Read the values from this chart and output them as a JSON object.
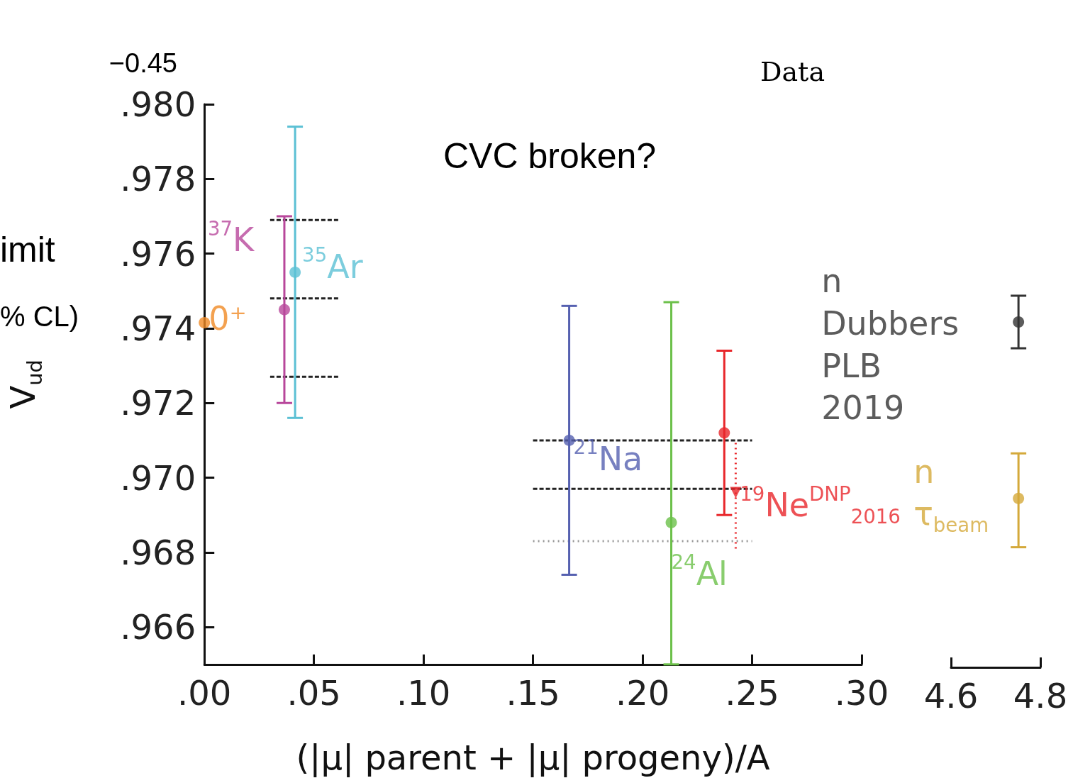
{
  "chart_data": [
    {
      "type": "scatter",
      "xlabel": "(|μ| parent + |μ| progeny)/A",
      "ylabel": "V$_{ud}$",
      "marker": "circle",
      "annotations": [
        "CVC broken?",
        "imit",
        "% CL)",
        "−0.45",
        "Data"
      ],
      "xlim": [
        0,
        0.3
      ],
      "xticks": [
        {
          "value": 0,
          "label": ".00"
        },
        {
          "value": 0.05,
          "label": ".05"
        },
        {
          "value": 0.1,
          "label": ".10"
        },
        {
          "value": 0.15,
          "label": ".15"
        },
        {
          "value": 0.2,
          "label": ".20"
        },
        {
          "value": 0.25,
          "label": ".25"
        },
        {
          "value": 0.3,
          "label": ".30"
        }
      ],
      "ylim": [
        0.965,
        0.98
      ],
      "yticks": [
        {
          "value": 0.966,
          "label": ".966"
        },
        {
          "value": 0.968,
          "label": ".968"
        },
        {
          "value": 0.97,
          "label": ".970"
        },
        {
          "value": 0.972,
          "label": ".972"
        },
        {
          "value": 0.974,
          "label": ".974"
        },
        {
          "value": 0.976,
          "label": ".976"
        },
        {
          "value": 0.978,
          "label": ".978"
        },
        {
          "value": 0.98,
          "label": ".980"
        }
      ],
      "series": [
        {
          "name": "0⁺",
          "color": "#f08a24",
          "x": [
            0
          ],
          "values": [
            0.97415
          ]
        },
        {
          "name": "$^{37}$K",
          "color": "#b8479b",
          "x": [
            0.0365
          ],
          "values": [
            0.9745
          ],
          "errors": [
            [
              0.972,
              0.977
            ]
          ]
        },
        {
          "name": "$^{35}$Ar",
          "color": "#5bc0d4",
          "x": [
            0.0414
          ],
          "values": [
            0.9755
          ],
          "errors": [
            [
              0.9716,
              0.9794
            ]
          ]
        },
        {
          "name": "$^{21}$Na",
          "color": "#5560b0",
          "x": [
            0.1665
          ],
          "values": [
            0.971
          ],
          "errors": [
            [
              0.9674,
              0.9746
            ]
          ]
        },
        {
          "name": "$^{24}$Al",
          "color": "#6cc04a",
          "x": [
            0.2131
          ],
          "values": [
            0.9688
          ],
          "errors": [
            [
              0.965,
              0.9747
            ]
          ]
        },
        {
          "name": "$^{19}$Ne$^{DNP}$$_{2016}$",
          "color": "#e8262a",
          "x": [
            0.2373
          ],
          "values": [
            0.9712
          ],
          "errors": [
            [
              0.969,
              0.9734
            ]
          ]
        },
        {
          "color": "#e8262a",
          "x": [
            0.2425
          ],
          "values": [
            0.9696
          ],
          "errors": [
            [
              0.9681,
              0.971
            ]
          ],
          "marker": "triangle",
          "line_style": "dotted"
        },
        {
          "type": "line",
          "color": "#222222",
          "marker": "none",
          "line_style": "dashed",
          "x": [
            0.03,
            0.062
          ],
          "values": [
            0.9769,
            0.9769
          ]
        },
        {
          "type": "line",
          "color": "#222222",
          "marker": "none",
          "line_style": "dashed",
          "x": [
            0.03,
            0.062
          ],
          "values": [
            0.9748,
            0.9748
          ]
        },
        {
          "type": "line",
          "color": "#222222",
          "marker": "none",
          "line_style": "dashed",
          "x": [
            0.03,
            0.062
          ],
          "values": [
            0.9727,
            0.9727
          ]
        },
        {
          "type": "line",
          "color": "#222222",
          "marker": "none",
          "line_style": "dashed",
          "x": [
            0.15,
            0.25
          ],
          "values": [
            0.971,
            0.971
          ]
        },
        {
          "type": "line",
          "color": "#222222",
          "marker": "none",
          "line_style": "dashed",
          "x": [
            0.15,
            0.25
          ],
          "values": [
            0.9697,
            0.9697
          ]
        },
        {
          "type": "line",
          "color": "#999999",
          "marker": "none",
          "line_style": "dotted",
          "x": [
            0.15,
            0.25
          ],
          "values": [
            0.9683,
            0.9683
          ]
        }
      ]
    },
    {
      "type": "scatter",
      "marker": "circle",
      "tick_labels": "x",
      "xlim": [
        4.6,
        4.8
      ],
      "xticks": [
        4.6,
        4.8
      ],
      "ylim": [
        0.965,
        0.98
      ],
      "series": [
        {
          "name": "n\nDubbers\nPLB\n2019",
          "color": "#333333",
          "x": [
            4.751
          ],
          "values": [
            0.9742
          ],
          "errors": [
            [
              0.9735,
              0.9749
            ]
          ]
        },
        {
          "name": "n\nτ$_{beam}$",
          "color": "#d4a93a",
          "x": [
            4.751
          ],
          "values": [
            0.9695
          ],
          "errors": [
            [
              0.9682,
              0.9707
            ]
          ]
        }
      ]
    }
  ]
}
